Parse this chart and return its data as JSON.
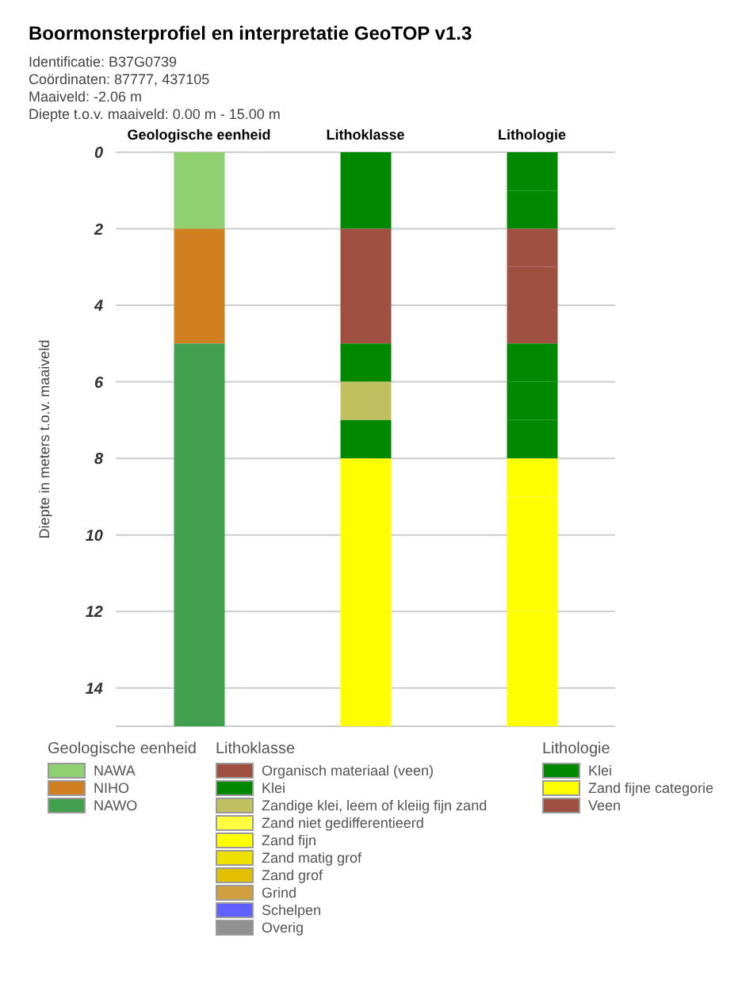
{
  "chart_data": {
    "type": "bar",
    "stacked": true,
    "title": "Boormonsterprofiel en interpretatie GeoTOP v1.3",
    "annotations": [
      "Identificatie: B37G0739",
      "Coördinaten: 87777, 437105",
      "Maaiveld: -2.06 m",
      "Diepte t.o.v. maaiveld: 0.00 m - 15.00 m"
    ],
    "ylabel": "Diepte in meters t.o.v. maaiveld",
    "categories": [
      "Geologische eenheid",
      "Lithoklasse",
      "Lithologie"
    ],
    "ylim": [
      15,
      0
    ],
    "yticks": [
      0,
      2,
      4,
      6,
      8,
      10,
      12,
      14
    ],
    "grid": "y",
    "legend": "bottom",
    "series": [
      {
        "values": [
          2,
          2,
          1
        ],
        "colors": [
          "#90d070",
          "#008800",
          "#008800"
        ]
      },
      {
        "values": [
          3,
          3,
          1
        ],
        "colors": [
          "#d08020",
          "#a05040",
          "#008800"
        ]
      },
      {
        "values": [
          10,
          1,
          1
        ],
        "colors": [
          "#40a050",
          "#008800",
          "#a05040"
        ]
      },
      {
        "values": [
          null,
          1,
          2
        ],
        "colors": [
          null,
          "#c0c060",
          "#a05040"
        ]
      },
      {
        "values": [
          null,
          1,
          1
        ],
        "colors": [
          null,
          "#008800",
          "#008800"
        ]
      },
      {
        "values": [
          null,
          7,
          1
        ],
        "colors": [
          null,
          "#ffff00",
          "#008800"
        ]
      },
      {
        "values": [
          null,
          null,
          1
        ],
        "colors": [
          null,
          null,
          "#008800"
        ]
      },
      {
        "values": [
          null,
          null,
          1
        ],
        "colors": [
          null,
          null,
          "#ffff00"
        ]
      },
      {
        "values": [
          null,
          null,
          2
        ],
        "colors": [
          null,
          null,
          "#ffff00"
        ]
      },
      {
        "values": [
          null,
          null,
          1
        ],
        "colors": [
          null,
          null,
          "#ffff00"
        ]
      },
      {
        "values": [
          null,
          null,
          3
        ],
        "colors": [
          null,
          null,
          "#ffff00"
        ]
      },
      {
        "name": "NAWA",
        "color": "#90d070",
        "values": [
          0,
          null,
          null
        ]
      },
      {
        "name": "NIHO",
        "color": "#d08020",
        "values": [
          0,
          null,
          null
        ]
      },
      {
        "name": "NAWO",
        "color": "#40a050",
        "values": [
          0,
          null,
          null
        ]
      },
      {
        "name": "Organisch materiaal (veen)",
        "color": "#a05040",
        "values": [
          null,
          0,
          null
        ]
      },
      {
        "name": "Klei",
        "color": "#008800",
        "values": [
          null,
          0,
          null
        ]
      },
      {
        "name": "Zandige klei, leem of kleiig fijn zand",
        "color": "#c0c060",
        "values": [
          null,
          0,
          null
        ]
      },
      {
        "name": "Zand niet gedifferentieerd",
        "color": "#ffff40",
        "values": [
          null,
          0,
          null
        ]
      },
      {
        "name": "Zand fijn",
        "color": "#ffff00",
        "values": [
          null,
          0,
          null
        ]
      },
      {
        "name": "Zand matig grof",
        "color": "#f0e000",
        "values": [
          null,
          0,
          null
        ]
      },
      {
        "name": "Zand grof",
        "color": "#e0c000",
        "values": [
          null,
          0,
          null
        ]
      },
      {
        "name": "Grind",
        "color": "#d0a040",
        "values": [
          null,
          0,
          null
        ]
      },
      {
        "name": "Schelpen",
        "color": "#6060ff",
        "values": [
          null,
          0,
          null
        ]
      },
      {
        "name": "Overig",
        "color": "#909090",
        "values": [
          null,
          0,
          null
        ]
      },
      {
        "name": "Klei",
        "color": "#008800",
        "values": [
          null,
          null,
          0
        ]
      },
      {
        "name": "Zand fijne categorie",
        "color": "#ffff00",
        "values": [
          null,
          null,
          0
        ]
      },
      {
        "name": "Veen",
        "color": "#a05040",
        "values": [
          null,
          null,
          0
        ]
      }
    ]
  }
}
